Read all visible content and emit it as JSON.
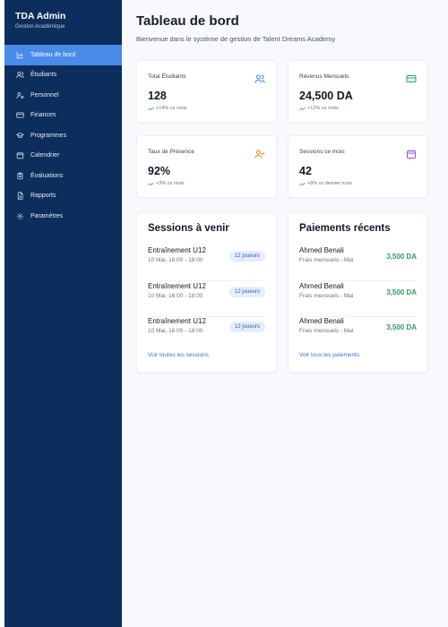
{
  "brand": {
    "title": "TDA Admin",
    "subtitle": "Gestion Académique"
  },
  "sidebar": {
    "items": [
      {
        "label": "Tableau de bord",
        "icon": "bar-chart-icon",
        "active": true
      },
      {
        "label": "Étudiants",
        "icon": "users-icon"
      },
      {
        "label": "Personnel",
        "icon": "user-cog-icon"
      },
      {
        "label": "Finances",
        "icon": "credit-card-icon"
      },
      {
        "label": "Programmes",
        "icon": "graduation-cap-icon"
      },
      {
        "label": "Calendrier",
        "icon": "calendar-icon"
      },
      {
        "label": "Évaluations",
        "icon": "clipboard-icon"
      },
      {
        "label": "Rapports",
        "icon": "file-text-icon"
      },
      {
        "label": "Paramètres",
        "icon": "gear-icon"
      }
    ]
  },
  "header": {
    "title": "Tableau de bord",
    "subtitle": "Bienvenue dans le système de gestion de Talent Dreams Academy"
  },
  "stats": [
    {
      "label": "Total Étudiants",
      "value": "128",
      "trend": "+14% ce mois",
      "icon": "users-icon",
      "color": "#3b82f6"
    },
    {
      "label": "Revenus Mensuels",
      "value": "24,500 DA",
      "trend": "+12% ce mois",
      "icon": "credit-card-icon",
      "color": "#22a35a"
    },
    {
      "label": "Taux de Présence",
      "value": "92%",
      "trend": "+3% ce mois",
      "icon": "user-check-icon",
      "color": "#e08a1e"
    },
    {
      "label": "Sessions ce mois",
      "value": "42",
      "trend": "+8% vs dernier mois",
      "icon": "calendar-icon",
      "color": "#9b4dd6"
    }
  ],
  "sessions": {
    "title": "Sessions à venir",
    "items": [
      {
        "title": "Entraînement U12",
        "time": "10 Mai, 16:00 - 18:00",
        "badge": "12 joueurs"
      },
      {
        "title": "Entraînement U12",
        "time": "10 Mai, 16:00 - 18:00",
        "badge": "12 joueurs"
      },
      {
        "title": "Entraînement U12",
        "time": "10 Mai, 16:00 - 18:00",
        "badge": "12 joueurs"
      }
    ],
    "link": "Voir toutes les sessions"
  },
  "payments": {
    "title": "Paiements récents",
    "items": [
      {
        "name": "Ahmed Benali",
        "desc": "Frais mensuels - Mai",
        "amount": "3,500 DA"
      },
      {
        "name": "Ahmed Benali",
        "desc": "Frais mensuels - Mai",
        "amount": "3,500 DA"
      },
      {
        "name": "Ahmed Benali",
        "desc": "Frais mensuels - Mai",
        "amount": "3,500 DA"
      }
    ],
    "link": "Voir tous les paiements"
  }
}
